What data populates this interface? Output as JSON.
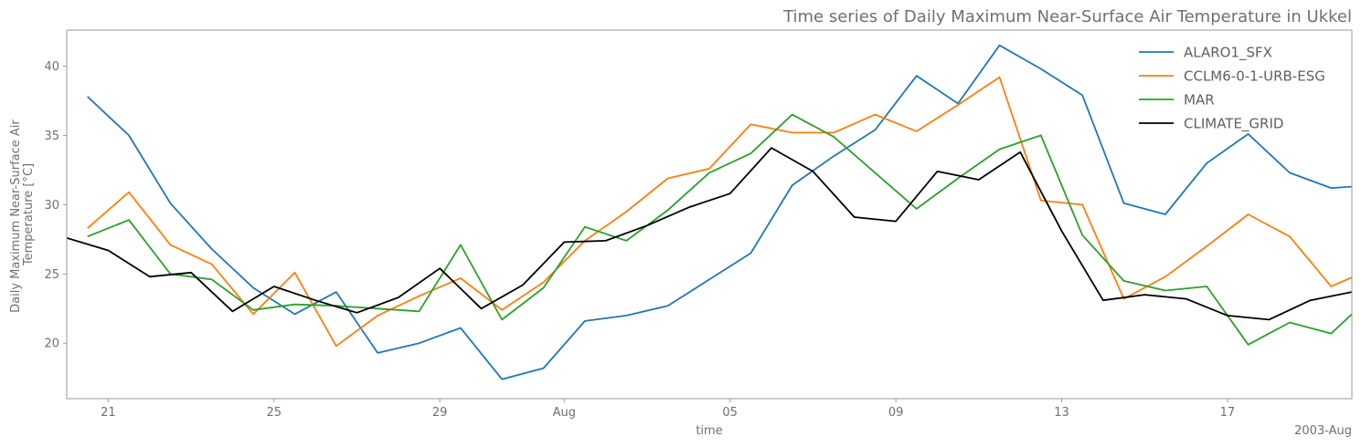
{
  "chart_data": {
    "type": "line",
    "title": "Time series of Daily Maximum Near-Surface Air Temperature in Ukkel",
    "xlabel": "time",
    "ylabel_lines": [
      "Daily Maximum Near-Surface Air",
      "Temperature [°C]"
    ],
    "x_offset_label": "2003-Aug",
    "xlim": [
      "2003-07-20",
      "2003-08-20"
    ],
    "ylim": [
      16,
      42.6
    ],
    "x_ticks": [
      {
        "date": "2003-07-21",
        "label": "21"
      },
      {
        "date": "2003-07-25",
        "label": "25"
      },
      {
        "date": "2003-07-29",
        "label": "29"
      },
      {
        "date": "2003-08-01",
        "label": "Aug"
      },
      {
        "date": "2003-08-05",
        "label": "05"
      },
      {
        "date": "2003-08-09",
        "label": "09"
      },
      {
        "date": "2003-08-13",
        "label": "13"
      },
      {
        "date": "2003-08-17",
        "label": "17"
      }
    ],
    "y_ticks": [
      {
        "value": 20,
        "label": "20"
      },
      {
        "value": 25,
        "label": "25"
      },
      {
        "value": 30,
        "label": "30"
      },
      {
        "value": 35,
        "label": "35"
      },
      {
        "value": 40,
        "label": "40"
      }
    ],
    "legend": {
      "position": "top-right"
    },
    "grid": false,
    "series": [
      {
        "name": "ALARO1_SFX",
        "color": "#1f77b4",
        "start": "2003-07-20T12:00",
        "values": [
          37.8,
          35.0,
          30.1,
          26.8,
          24.0,
          22.1,
          23.7,
          19.3,
          20.0,
          21.1,
          17.4,
          18.2,
          21.6,
          22.0,
          22.7,
          24.6,
          26.5,
          31.4,
          33.5,
          35.4,
          39.3,
          37.3,
          41.5,
          39.8,
          37.9,
          30.1,
          29.3,
          33.0,
          35.1,
          32.3,
          31.2,
          31.4
        ]
      },
      {
        "name": "CCLM6-0-1-URB-ESG",
        "color": "#ff7f0e",
        "start": "2003-07-20T12:00",
        "values": [
          28.3,
          30.9,
          27.1,
          25.7,
          22.1,
          25.1,
          19.8,
          22.0,
          23.4,
          24.7,
          22.4,
          24.4,
          27.4,
          29.5,
          31.9,
          32.6,
          35.8,
          35.2,
          35.2,
          36.5,
          35.3,
          37.2,
          39.2,
          30.3,
          30.0,
          23.2,
          24.8,
          27.0,
          29.3,
          27.7,
          24.1,
          25.4
        ]
      },
      {
        "name": "MAR",
        "color": "#2ca02c",
        "start": "2003-07-20T12:00",
        "values": [
          27.7,
          28.9,
          25.0,
          24.6,
          22.4,
          22.8,
          22.7,
          22.5,
          22.3,
          27.1,
          21.7,
          24.0,
          28.4,
          27.4,
          29.6,
          32.3,
          33.7,
          36.5,
          34.9,
          32.3,
          29.7,
          31.9,
          34.0,
          35.0,
          27.8,
          24.5,
          23.8,
          24.1,
          19.9,
          21.5,
          20.7,
          23.5
        ]
      },
      {
        "name": "CLIMATE_GRID",
        "color": "#000000",
        "start": "2003-07-20T00:00",
        "values": [
          27.6,
          26.7,
          24.8,
          25.1,
          22.3,
          24.1,
          23.1,
          22.2,
          23.3,
          25.4,
          22.5,
          24.2,
          27.3,
          27.4,
          28.5,
          29.8,
          30.8,
          34.1,
          32.4,
          29.1,
          28.8,
          32.4,
          31.8,
          33.8,
          28.1,
          23.1,
          23.5,
          23.2,
          22.0,
          21.7,
          23.1,
          23.7
        ]
      }
    ]
  }
}
